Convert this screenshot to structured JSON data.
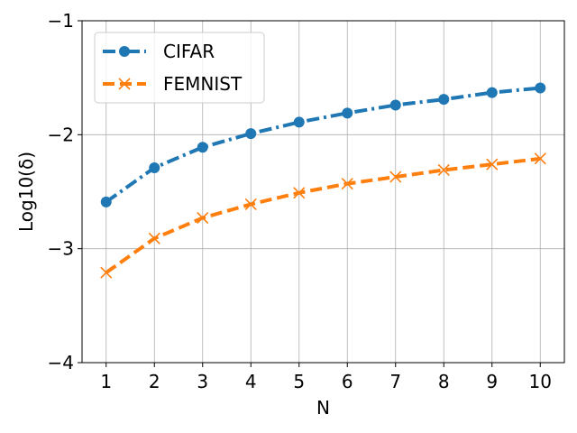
{
  "chart_data": {
    "type": "line",
    "xlabel": "N",
    "ylabel": "Log10(δ)",
    "x": [
      1,
      2,
      3,
      4,
      5,
      6,
      7,
      8,
      9,
      10
    ],
    "xticks": [
      "1",
      "2",
      "3",
      "4",
      "5",
      "6",
      "7",
      "8",
      "9",
      "10"
    ],
    "yticks": [
      "−4",
      "−3",
      "−2",
      "−1"
    ],
    "ylim": [
      -4,
      -1
    ],
    "grid": true,
    "legend_position": "top-left",
    "series": [
      {
        "name": "CIFAR",
        "color": "#1f77b4",
        "linestyle": "dashdot",
        "marker": "circle",
        "values": [
          -2.59,
          -2.29,
          -2.11,
          -1.99,
          -1.89,
          -1.81,
          -1.74,
          -1.69,
          -1.63,
          -1.59
        ]
      },
      {
        "name": "FEMNIST",
        "color": "#ff7f0e",
        "linestyle": "dashed",
        "marker": "x",
        "values": [
          -3.21,
          -2.91,
          -2.73,
          -2.61,
          -2.51,
          -2.43,
          -2.37,
          -2.31,
          -2.26,
          -2.21
        ]
      }
    ]
  }
}
